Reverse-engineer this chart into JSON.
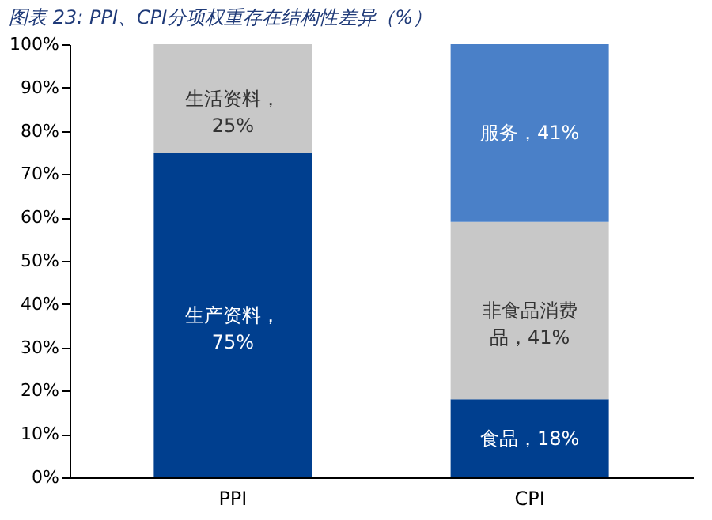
{
  "chart_data": {
    "type": "bar",
    "stacked": true,
    "title": "图表 23:  PPI、CPI分项权重存在结构性差异（%）",
    "categories": [
      "PPI",
      "CPI"
    ],
    "series": [
      {
        "color": "#003f8f",
        "values": [
          75,
          18
        ],
        "value_labels": [
          "生产资料，75%",
          "食品，18%"
        ]
      },
      {
        "color": "#c8c8c8",
        "values": [
          25,
          41
        ],
        "value_labels": [
          "生活资料，25%",
          "非食品消费品，41%"
        ]
      },
      {
        "color": "#4a80c8",
        "values": [
          null,
          41
        ],
        "value_labels": [
          null,
          "服务，41%"
        ]
      }
    ],
    "ylim": [
      0,
      100
    ],
    "yticks": [
      {
        "value": 0,
        "label": "0%"
      },
      {
        "value": 10,
        "label": "10%"
      },
      {
        "value": 20,
        "label": "20%"
      },
      {
        "value": 30,
        "label": "30%"
      },
      {
        "value": 40,
        "label": "40%"
      },
      {
        "value": 50,
        "label": "50%"
      },
      {
        "value": 60,
        "label": "60%"
      },
      {
        "value": 70,
        "label": "70%"
      },
      {
        "value": 80,
        "label": "80%"
      },
      {
        "value": 90,
        "label": "90%"
      },
      {
        "value": 100,
        "label": "100%"
      }
    ],
    "grid": false
  }
}
